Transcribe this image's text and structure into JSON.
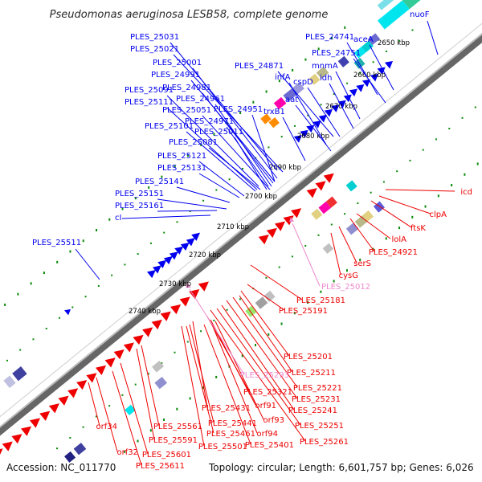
{
  "title": "Pseudomonas aeruginosa LESB58, complete genome",
  "footer": {
    "accession": "Accession: NC_011770",
    "topology": "Topology: circular; Length: 6,601,757 bp; Genes: 6,026"
  },
  "kbp_ticks": [
    "2650 kbp",
    "2660 kbp",
    "2670 kbp",
    "2680 kbp",
    "2690 kbp",
    "2700 kbp",
    "2710 kbp",
    "2720 kbp",
    "2730 kbp",
    "2740 kbp"
  ],
  "colors": {
    "forward": "#0000ee",
    "reverse": "#ee0000",
    "pseudogene": "#ee88cc",
    "backbone": "#666666",
    "ticks": "#0a8a0a"
  },
  "labels": {
    "forward": [
      "nuoF",
      "PLES_24741",
      "aceA",
      "PLES_24751",
      "mnmA",
      "PLES_24871",
      "idh",
      "infA",
      "cspD",
      "aat",
      "trxB1",
      "PLES_25031",
      "PLES_25021",
      "PLES_25001",
      "PLES_24991",
      "PLES_24981",
      "PLES_25091",
      "PLES_24961",
      "PLES_25111",
      "PLES_25051",
      "PLES_24951",
      "PLES_24971",
      "PLES_25101",
      "PLES_25011",
      "PLES_25081",
      "PLES_25121",
      "PLES_25131",
      "PLES_25141",
      "PLES_25151",
      "PLES_25161",
      "cI",
      "PLES_25511"
    ],
    "reverse": [
      "icd",
      "clpA",
      "ftsK",
      "lolA",
      "PLES_24921",
      "serS",
      "cysG",
      "PLES_25181",
      "PLES_25191",
      "PLES_25201",
      "PLES_25211",
      "PLES_25221",
      "PLES_25231",
      "PLES_25241",
      "PLES_25251",
      "PLES_25261",
      "PLES_25321",
      "orf91",
      "orf93",
      "orf94",
      "PLES_25401",
      "PLES_25431",
      "PLES_25441",
      "PLES_25461",
      "PLES_25501",
      "PLES_25561",
      "PLES_25591",
      "PLES_25601",
      "PLES_25611",
      "orf34",
      "orf32"
    ],
    "pseudo": [
      "PLES_25012",
      "PLES_25293"
    ]
  }
}
